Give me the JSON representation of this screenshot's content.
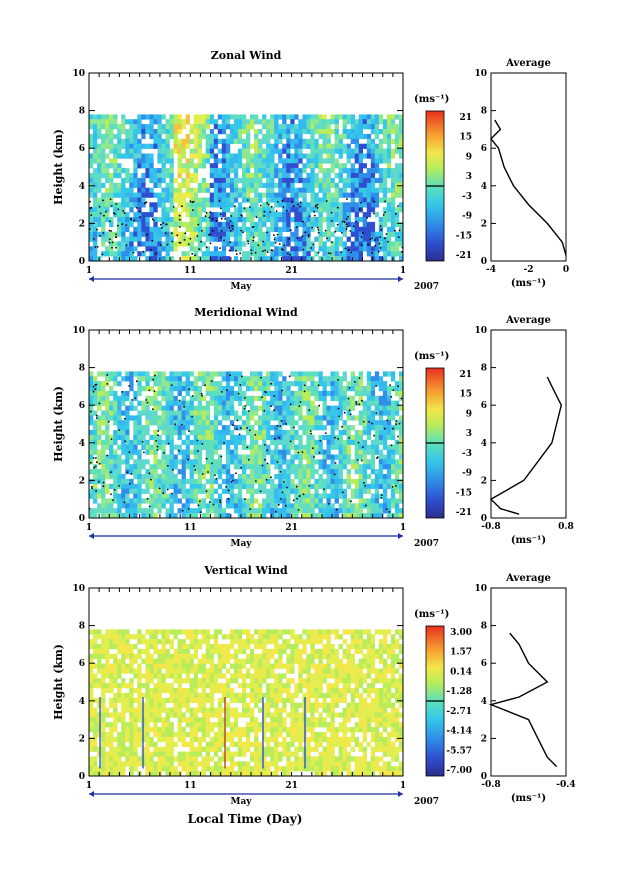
{
  "panels": [
    {
      "title": "Zonal Wind",
      "ylabel": "Height (km)",
      "yticks": [
        "0",
        "2",
        "4",
        "6",
        "8",
        "10"
      ],
      "xticks": [
        "1",
        "11",
        "21",
        "1"
      ],
      "month": "May",
      "year": "2007",
      "cbar_unit": "(ms⁻¹)",
      "cbar_ticks": [
        "21",
        "15",
        "9",
        "3",
        "-3",
        "-9",
        "-15",
        "-21"
      ],
      "avg_title": "Average",
      "avg_xticks": [
        "-4",
        "-2",
        "0"
      ],
      "avg_unit": "(ms⁻¹)",
      "avg_yticks": [
        "0",
        "2",
        "4",
        "6",
        "8",
        "10"
      ]
    },
    {
      "title": "Meridional Wind",
      "ylabel": "Height (km)",
      "yticks": [
        "0",
        "2",
        "4",
        "6",
        "8",
        "10"
      ],
      "xticks": [
        "1",
        "11",
        "21",
        "1"
      ],
      "month": "May",
      "year": "2007",
      "cbar_unit": "(ms⁻¹)",
      "cbar_ticks": [
        "21",
        "15",
        "9",
        "3",
        "-3",
        "-9",
        "-15",
        "-21"
      ],
      "avg_title": "Average",
      "avg_xticks": [
        "-0.8",
        "0.8"
      ],
      "avg_unit": "(ms⁻¹)",
      "avg_yticks": [
        "0",
        "2",
        "4",
        "6",
        "8",
        "10"
      ]
    },
    {
      "title": "Vertical Wind",
      "ylabel": "Height (km)",
      "yticks": [
        "0",
        "2",
        "4",
        "6",
        "8",
        "10"
      ],
      "xticks": [
        "1",
        "11",
        "21",
        "1"
      ],
      "month": "May",
      "year": "2007",
      "cbar_unit": "(ms⁻¹)",
      "cbar_ticks": [
        "3.00",
        "1.57",
        "0.14",
        "-1.28",
        "-2.71",
        "-4.14",
        "-5.57",
        "-7.00"
      ],
      "avg_title": "Average",
      "avg_xticks": [
        "-0.8",
        "-0.4"
      ],
      "avg_unit": "(ms⁻¹)",
      "avg_yticks": [
        "0",
        "2",
        "4",
        "6",
        "8",
        "10"
      ]
    }
  ],
  "xlabel": "Local Time (Day)",
  "chart_data": [
    {
      "type": "heatmap",
      "title": "Zonal Wind",
      "ylabel": "Height (km)",
      "ylim": [
        0,
        10
      ],
      "x": "day of May 2007 (1 May - 1 Jun)",
      "colorbar": {
        "min": -21,
        "max": 21,
        "unit": "ms-1"
      },
      "average_profile": {
        "xlim": [
          -4,
          0
        ],
        "height_km": [
          0.3,
          1,
          2,
          3,
          4,
          5,
          6,
          6.5,
          7,
          7.5
        ],
        "value": [
          0,
          -0.2,
          -1.0,
          -2.0,
          -2.8,
          -3.3,
          -3.6,
          -4.0,
          -3.5,
          -3.8
        ]
      }
    },
    {
      "type": "heatmap",
      "title": "Meridional Wind",
      "ylabel": "Height (km)",
      "ylim": [
        0,
        10
      ],
      "x": "day of May 2007 (1 May - 1 Jun)",
      "colorbar": {
        "min": -21,
        "max": 21,
        "unit": "ms-1"
      },
      "average_profile": {
        "xlim": [
          -0.8,
          0.8
        ],
        "height_km": [
          0.2,
          0.5,
          1,
          2,
          3,
          4,
          5,
          6,
          7,
          7.5
        ],
        "value": [
          -0.2,
          -0.6,
          -0.8,
          -0.1,
          0.2,
          0.5,
          0.6,
          0.7,
          0.5,
          0.4
        ]
      }
    },
    {
      "type": "heatmap",
      "title": "Vertical Wind",
      "ylabel": "Height (km)",
      "ylim": [
        0,
        10
      ],
      "x": "day of May 2007 (1 May - 1 Jun)",
      "colorbar": {
        "min": -7.0,
        "max": 3.0,
        "unit": "ms-1"
      },
      "average_profile": {
        "xlim": [
          -0.8,
          -0.4
        ],
        "height_km": [
          0.5,
          1,
          2,
          3,
          3.8,
          4.2,
          5,
          6,
          7,
          7.6
        ],
        "value": [
          -0.45,
          -0.5,
          -0.55,
          -0.6,
          -0.8,
          -0.65,
          -0.5,
          -0.6,
          -0.65,
          -0.7
        ]
      }
    }
  ]
}
